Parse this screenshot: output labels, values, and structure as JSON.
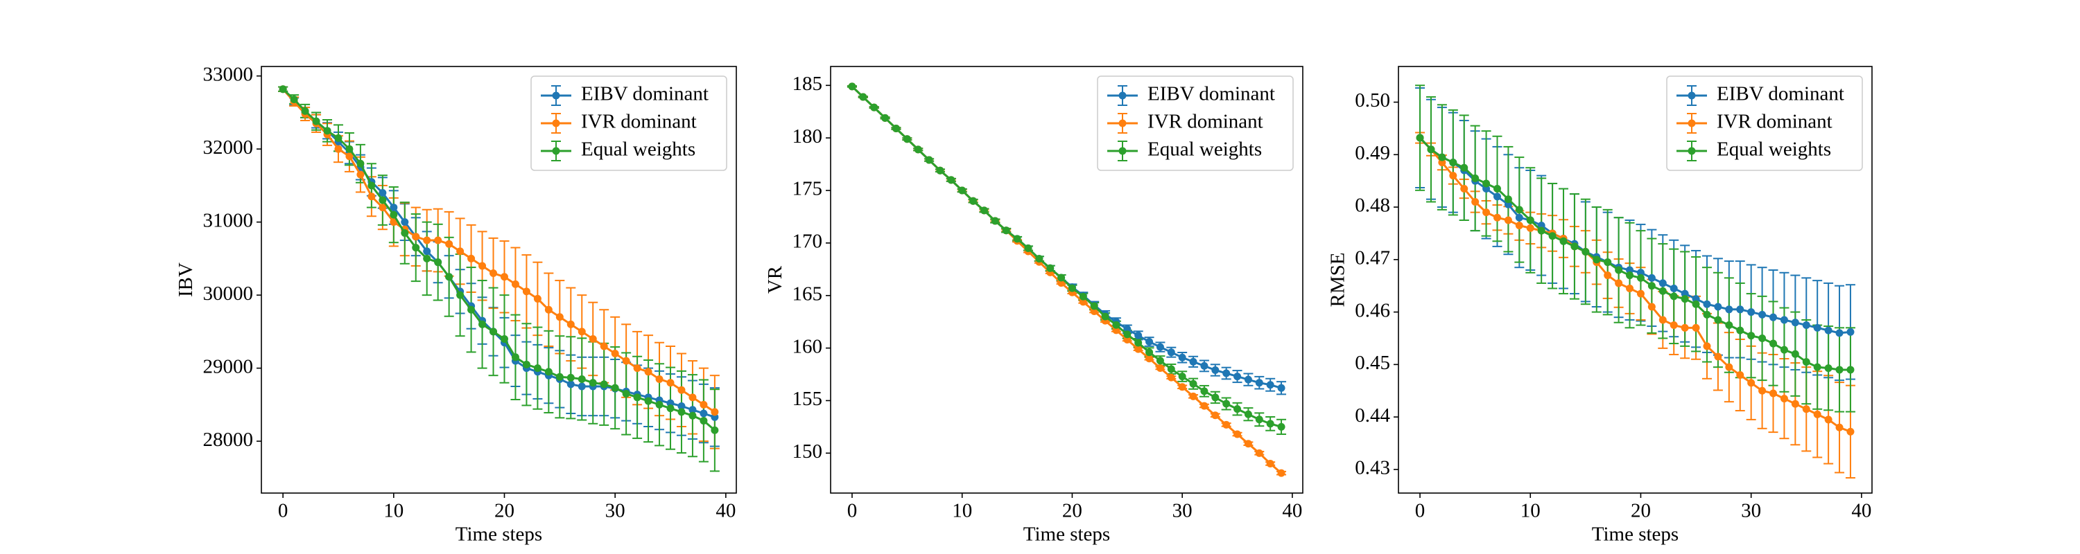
{
  "chart_data": [
    {
      "type": "errorbar-line",
      "xlabel": "Time steps",
      "ylabel": "IBV",
      "x": [
        0,
        1,
        2,
        3,
        4,
        5,
        6,
        7,
        8,
        9,
        10,
        11,
        12,
        13,
        14,
        15,
        16,
        17,
        18,
        19,
        20,
        21,
        22,
        23,
        24,
        25,
        26,
        27,
        28,
        29,
        30,
        31,
        32,
        33,
        34,
        35,
        36,
        37,
        38,
        39
      ],
      "xlim": [
        -1.95,
        40.95
      ],
      "xticks": [
        0,
        10,
        20,
        30,
        40
      ],
      "ylim": [
        27290,
        33130
      ],
      "yticks": [
        28000,
        29000,
        30000,
        31000,
        32000,
        33000
      ],
      "legend": "upper right",
      "series": [
        {
          "name": "EIBV dominant",
          "color": "#1f77b4",
          "values": [
            32820,
            32650,
            32500,
            32380,
            32250,
            32100,
            31950,
            31750,
            31550,
            31400,
            31200,
            31000,
            30800,
            30600,
            30450,
            30250,
            30050,
            29850,
            29650,
            29500,
            29350,
            29100,
            29000,
            28950,
            28900,
            28850,
            28780,
            28750,
            28750,
            28750,
            28720,
            28680,
            28640,
            28600,
            28560,
            28520,
            28480,
            28430,
            28380,
            28330
          ],
          "errors": [
            30,
            50,
            70,
            90,
            110,
            130,
            150,
            170,
            190,
            210,
            230,
            250,
            260,
            270,
            280,
            290,
            300,
            310,
            320,
            330,
            340,
            350,
            360,
            370,
            380,
            390,
            400,
            400,
            400,
            400,
            400,
            400,
            400,
            400,
            400,
            400,
            400,
            400,
            400,
            400
          ]
        },
        {
          "name": "IVR dominant",
          "color": "#ff7f0e",
          "values": [
            32820,
            32650,
            32480,
            32350,
            32200,
            32000,
            31900,
            31650,
            31350,
            31200,
            31000,
            30900,
            30800,
            30750,
            30750,
            30700,
            30600,
            30500,
            30400,
            30300,
            30250,
            30150,
            30050,
            29950,
            29800,
            29700,
            29600,
            29500,
            29400,
            29300,
            29200,
            29100,
            29000,
            28950,
            28850,
            28800,
            28700,
            28600,
            28500,
            28400
          ],
          "errors": [
            30,
            60,
            90,
            120,
            150,
            180,
            210,
            240,
            270,
            300,
            330,
            360,
            400,
            420,
            430,
            440,
            450,
            460,
            470,
            480,
            490,
            500,
            500,
            500,
            500,
            500,
            500,
            500,
            500,
            500,
            500,
            500,
            500,
            500,
            500,
            500,
            500,
            500,
            500,
            500
          ]
        },
        {
          "name": "Equal weights",
          "color": "#2ca02c",
          "values": [
            32820,
            32680,
            32520,
            32380,
            32250,
            32150,
            32000,
            31800,
            31500,
            31300,
            31100,
            30850,
            30650,
            30500,
            30450,
            30250,
            30000,
            29800,
            29600,
            29500,
            29400,
            29150,
            29050,
            29000,
            28950,
            28880,
            28870,
            28850,
            28800,
            28780,
            28730,
            28650,
            28600,
            28550,
            28500,
            28450,
            28400,
            28350,
            28280,
            28150
          ],
          "errors": [
            30,
            60,
            90,
            120,
            150,
            180,
            220,
            260,
            300,
            340,
            380,
            420,
            460,
            500,
            520,
            540,
            560,
            580,
            600,
            600,
            600,
            580,
            560,
            560,
            560,
            560,
            560,
            560,
            560,
            560,
            560,
            560,
            560,
            560,
            560,
            560,
            560,
            560,
            560,
            560
          ]
        }
      ]
    },
    {
      "type": "errorbar-line",
      "xlabel": "Time steps",
      "ylabel": "VR",
      "x": [
        0,
        1,
        2,
        3,
        4,
        5,
        6,
        7,
        8,
        9,
        10,
        11,
        12,
        13,
        14,
        15,
        16,
        17,
        18,
        19,
        20,
        21,
        22,
        23,
        24,
        25,
        26,
        27,
        28,
        29,
        30,
        31,
        32,
        33,
        34,
        35,
        36,
        37,
        38,
        39
      ],
      "xlim": [
        -1.95,
        40.95
      ],
      "xticks": [
        0,
        10,
        20,
        30,
        40
      ],
      "ylim": [
        146.2,
        186.8
      ],
      "yticks": [
        150,
        155,
        160,
        165,
        170,
        175,
        180,
        185
      ],
      "legend": "upper right",
      "series": [
        {
          "name": "EIBV dominant",
          "color": "#1f77b4",
          "values": [
            184.9,
            183.9,
            182.9,
            181.9,
            180.9,
            179.9,
            178.9,
            177.9,
            176.9,
            176.0,
            175.0,
            174.0,
            173.1,
            172.1,
            171.2,
            170.4,
            169.5,
            168.5,
            167.6,
            166.7,
            165.8,
            165.0,
            164.1,
            163.2,
            162.5,
            161.8,
            161.2,
            160.6,
            160.1,
            159.6,
            159.1,
            158.7,
            158.3,
            157.9,
            157.6,
            157.3,
            157.0,
            156.7,
            156.5,
            156.2
          ],
          "errors": [
            0.05,
            0.05,
            0.06,
            0.07,
            0.08,
            0.09,
            0.1,
            0.11,
            0.12,
            0.13,
            0.14,
            0.15,
            0.16,
            0.17,
            0.18,
            0.19,
            0.2,
            0.22,
            0.24,
            0.26,
            0.28,
            0.3,
            0.32,
            0.34,
            0.36,
            0.38,
            0.4,
            0.42,
            0.44,
            0.46,
            0.48,
            0.5,
            0.52,
            0.54,
            0.55,
            0.56,
            0.57,
            0.58,
            0.59,
            0.6
          ]
        },
        {
          "name": "IVR dominant",
          "color": "#ff7f0e",
          "values": [
            184.9,
            183.9,
            182.9,
            181.9,
            180.9,
            179.9,
            178.9,
            177.9,
            176.9,
            176.0,
            175.0,
            174.0,
            173.1,
            172.1,
            171.2,
            170.2,
            169.2,
            168.2,
            167.2,
            166.2,
            165.3,
            164.4,
            163.5,
            162.6,
            161.7,
            160.8,
            159.9,
            159.0,
            158.1,
            157.2,
            156.3,
            155.4,
            154.5,
            153.6,
            152.7,
            151.8,
            150.9,
            150.0,
            149.0,
            148.1
          ],
          "errors": [
            0.05,
            0.05,
            0.06,
            0.07,
            0.08,
            0.09,
            0.1,
            0.1,
            0.1,
            0.1,
            0.1,
            0.1,
            0.1,
            0.1,
            0.1,
            0.1,
            0.1,
            0.1,
            0.1,
            0.1,
            0.12,
            0.12,
            0.12,
            0.12,
            0.12,
            0.12,
            0.12,
            0.12,
            0.12,
            0.12,
            0.15,
            0.15,
            0.15,
            0.15,
            0.15,
            0.15,
            0.15,
            0.15,
            0.15,
            0.15
          ]
        },
        {
          "name": "Equal weights",
          "color": "#2ca02c",
          "values": [
            184.9,
            183.9,
            182.9,
            181.9,
            180.9,
            179.9,
            178.9,
            177.9,
            176.9,
            176.0,
            175.0,
            174.0,
            173.1,
            172.1,
            171.2,
            170.4,
            169.5,
            168.5,
            167.6,
            166.7,
            165.7,
            164.9,
            164.0,
            163.0,
            162.2,
            161.3,
            160.5,
            159.6,
            158.8,
            158.0,
            157.3,
            156.6,
            155.9,
            155.3,
            154.7,
            154.2,
            153.7,
            153.2,
            152.8,
            152.5
          ],
          "errors": [
            0.05,
            0.05,
            0.06,
            0.07,
            0.08,
            0.09,
            0.1,
            0.11,
            0.12,
            0.13,
            0.14,
            0.15,
            0.16,
            0.17,
            0.18,
            0.19,
            0.2,
            0.22,
            0.24,
            0.26,
            0.28,
            0.3,
            0.32,
            0.34,
            0.36,
            0.38,
            0.4,
            0.42,
            0.44,
            0.46,
            0.48,
            0.5,
            0.52,
            0.54,
            0.56,
            0.58,
            0.6,
            0.62,
            0.65,
            0.7
          ]
        }
      ]
    },
    {
      "type": "errorbar-line",
      "xlabel": "Time steps",
      "ylabel": "RMSE",
      "x": [
        0,
        1,
        2,
        3,
        4,
        5,
        6,
        7,
        8,
        9,
        10,
        11,
        12,
        13,
        14,
        15,
        16,
        17,
        18,
        19,
        20,
        21,
        22,
        23,
        24,
        25,
        26,
        27,
        28,
        29,
        30,
        31,
        32,
        33,
        34,
        35,
        36,
        37,
        38,
        39
      ],
      "xlim": [
        -1.95,
        40.95
      ],
      "xticks": [
        0,
        10,
        20,
        30,
        40
      ],
      "ylim": [
        0.4255,
        0.5068
      ],
      "yticks": [
        0.43,
        0.44,
        0.45,
        0.46,
        0.47,
        0.48,
        0.49,
        {
          "value": 0.5,
          "label": "0.50"
        }
      ],
      "legend": "upper right",
      "series": [
        {
          "name": "EIBV dominant",
          "color": "#1f77b4",
          "values": [
            0.4932,
            0.491,
            0.4895,
            0.4885,
            0.487,
            0.485,
            0.4835,
            0.482,
            0.4805,
            0.478,
            0.4775,
            0.4765,
            0.475,
            0.474,
            0.473,
            0.4715,
            0.4705,
            0.4695,
            0.4685,
            0.468,
            0.4675,
            0.4665,
            0.4655,
            0.4645,
            0.4635,
            0.4625,
            0.4615,
            0.461,
            0.4605,
            0.4605,
            0.46,
            0.4595,
            0.459,
            0.4585,
            0.458,
            0.4575,
            0.457,
            0.4565,
            0.456,
            0.4562
          ],
          "errors": [
            0.0095,
            0.0095,
            0.0095,
            0.0095,
            0.0095,
            0.0095,
            0.0095,
            0.0095,
            0.0095,
            0.0095,
            0.0095,
            0.0095,
            0.0095,
            0.0095,
            0.0095,
            0.0095,
            0.0095,
            0.0095,
            0.0095,
            0.0095,
            0.0092,
            0.0092,
            0.0092,
            0.0092,
            0.0092,
            0.0092,
            0.0092,
            0.0092,
            0.0092,
            0.0092,
            0.009,
            0.009,
            0.009,
            0.009,
            0.009,
            0.009,
            0.009,
            0.009,
            0.009,
            0.009
          ]
        },
        {
          "name": "IVR dominant",
          "color": "#ff7f0e",
          "values": [
            0.4932,
            0.491,
            0.4885,
            0.486,
            0.4835,
            0.481,
            0.479,
            0.478,
            0.4775,
            0.4765,
            0.476,
            0.4755,
            0.475,
            0.474,
            0.4725,
            0.4715,
            0.4695,
            0.467,
            0.4655,
            0.4645,
            0.4635,
            0.461,
            0.4585,
            0.4575,
            0.457,
            0.457,
            0.4535,
            0.4515,
            0.4495,
            0.448,
            0.4465,
            0.445,
            0.4445,
            0.4435,
            0.4425,
            0.4415,
            0.4405,
            0.4395,
            0.438,
            0.4372
          ],
          "errors": [
            0.001,
            0.0012,
            0.0014,
            0.0016,
            0.0018,
            0.002,
            0.0022,
            0.0024,
            0.0026,
            0.0028,
            0.003,
            0.0032,
            0.0034,
            0.0036,
            0.0038,
            0.004,
            0.0042,
            0.0044,
            0.0046,
            0.0048,
            0.005,
            0.0052,
            0.0054,
            0.0056,
            0.0058,
            0.006,
            0.0062,
            0.0064,
            0.0066,
            0.0068,
            0.007,
            0.0072,
            0.0074,
            0.0076,
            0.0078,
            0.008,
            0.0082,
            0.0084,
            0.0086,
            0.0088
          ]
        },
        {
          "name": "Equal weights",
          "color": "#2ca02c",
          "values": [
            0.4932,
            0.491,
            0.4895,
            0.4885,
            0.4875,
            0.4855,
            0.4845,
            0.4835,
            0.4815,
            0.4795,
            0.4775,
            0.4755,
            0.4745,
            0.4735,
            0.4725,
            0.4715,
            0.47,
            0.4695,
            0.468,
            0.467,
            0.4665,
            0.465,
            0.464,
            0.463,
            0.4625,
            0.4615,
            0.4595,
            0.4585,
            0.4575,
            0.4565,
            0.4555,
            0.455,
            0.454,
            0.4528,
            0.452,
            0.4505,
            0.4495,
            0.4493,
            0.449,
            0.449
          ],
          "errors": [
            0.01,
            0.01,
            0.01,
            0.01,
            0.01,
            0.01,
            0.01,
            0.01,
            0.01,
            0.01,
            0.01,
            0.01,
            0.01,
            0.01,
            0.01,
            0.01,
            0.01,
            0.01,
            0.01,
            0.01,
            0.009,
            0.009,
            0.009,
            0.009,
            0.009,
            0.009,
            0.009,
            0.009,
            0.009,
            0.009,
            0.008,
            0.008,
            0.008,
            0.008,
            0.008,
            0.008,
            0.008,
            0.008,
            0.008,
            0.008
          ]
        }
      ]
    }
  ]
}
